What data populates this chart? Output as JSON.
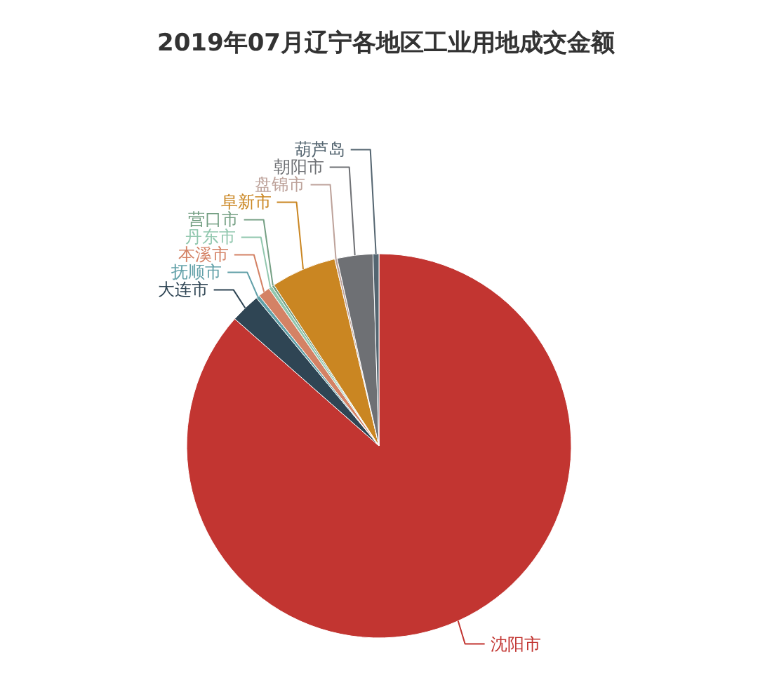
{
  "chart_data": {
    "type": "pie",
    "title": "2019年07月辽宁各地区工业用地成交金额",
    "categories": [
      "沈阳市",
      "大连市",
      "抚顺市",
      "本溪市",
      "丹东市",
      "营口市",
      "阜新市",
      "盘锦市",
      "朝阳市",
      "葫芦岛"
    ],
    "values": [
      86.5,
      2.5,
      0.3,
      1.0,
      0.3,
      0.2,
      5.5,
      0.2,
      3.0,
      0.5
    ],
    "colors": [
      "#c23531",
      "#2f4554",
      "#61a0a8",
      "#d48265",
      "#91c7ae",
      "#749f83",
      "#ca8622",
      "#bda29a",
      "#6e7074",
      "#546570"
    ]
  }
}
